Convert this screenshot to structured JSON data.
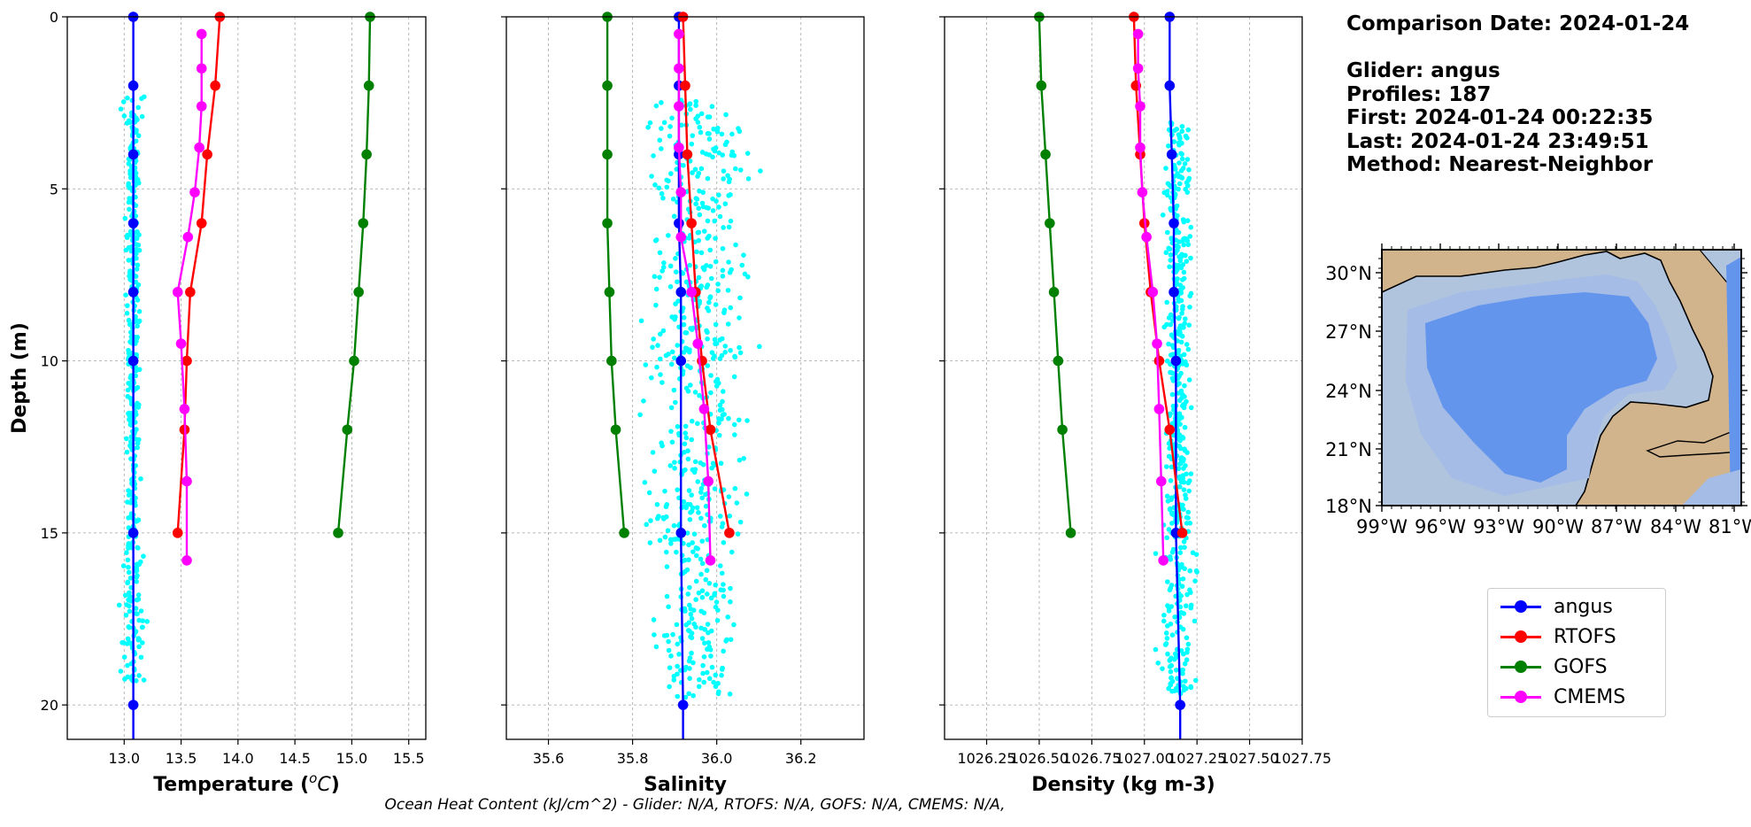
{
  "info": {
    "comparison_date": "Comparison Date: 2024-01-24",
    "glider": "Glider: angus",
    "profiles": "Profiles: 187",
    "first": "First: 2024-01-24 00:22:35",
    "last": "Last: 2024-01-24 23:49:51",
    "method": "Method: Nearest-Neighbor"
  },
  "footer": "Ocean Heat Content (kJ/cm^2) - Glider: N/A,  RTOFS: N/A,  GOFS: N/A,  CMEMS: N/A,",
  "colors": {
    "angus": "#0000ff",
    "RTOFS": "#ff0000",
    "GOFS": "#008000",
    "CMEMS": "#ff00ff",
    "scatter": "#00ffff",
    "land": "#d2b48c",
    "ocean_shelf": "#b0c4de",
    "ocean_mid": "#a4bce6",
    "ocean_deep": "#6495ed"
  },
  "legend": [
    {
      "name": "angus",
      "color": "#0000ff"
    },
    {
      "name": "RTOFS",
      "color": "#ff0000"
    },
    {
      "name": "GOFS",
      "color": "#008000"
    },
    {
      "name": "CMEMS",
      "color": "#ff00ff"
    }
  ],
  "map": {
    "lat_labels": [
      "30°N",
      "27°N",
      "24°N",
      "21°N",
      "18°N"
    ],
    "lon_labels": [
      "99°W",
      "96°W",
      "93°W",
      "90°W",
      "87°W",
      "84°W",
      "81°W"
    ]
  },
  "chart_data": [
    {
      "type": "line",
      "xlabel": "Temperature (°C)",
      "ylabel": "Depth (m)",
      "xlim": [
        12.5,
        15.65
      ],
      "ylim": [
        21,
        0
      ],
      "xticks": [
        13.0,
        13.5,
        14.0,
        14.5,
        15.0,
        15.5
      ],
      "xtick_labels": [
        "13.0",
        "13.5",
        "14.0",
        "14.5",
        "15.0",
        "15.5"
      ],
      "yticks": [
        0,
        5,
        10,
        15,
        20
      ],
      "grid": true,
      "scatter": {
        "x_center": 13.08,
        "x_spread": 0.06,
        "x_spread_wide": 0.12,
        "depth_min": 2.3,
        "depth_max": 19.3,
        "count": 420
      },
      "series": [
        {
          "name": "angus",
          "depth": [
            0,
            2,
            4,
            6,
            8,
            10,
            15,
            20
          ],
          "values": [
            13.08,
            13.08,
            13.08,
            13.08,
            13.08,
            13.08,
            13.08,
            13.08
          ],
          "extend_to": 21
        },
        {
          "name": "RTOFS",
          "depth": [
            0,
            2,
            4,
            6,
            8,
            10,
            12,
            15
          ],
          "values": [
            13.84,
            13.8,
            13.73,
            13.68,
            13.58,
            13.55,
            13.53,
            13.47
          ]
        },
        {
          "name": "GOFS",
          "depth": [
            0,
            2,
            4,
            6,
            8,
            10,
            12,
            15
          ],
          "values": [
            15.16,
            15.15,
            15.13,
            15.1,
            15.06,
            15.02,
            14.96,
            14.88
          ]
        },
        {
          "name": "CMEMS",
          "depth": [
            0.5,
            1.5,
            2.6,
            3.8,
            5.1,
            6.4,
            8,
            9.5,
            11.4,
            13.5,
            15.8
          ],
          "values": [
            13.68,
            13.68,
            13.68,
            13.66,
            13.62,
            13.56,
            13.47,
            13.5,
            13.53,
            13.55,
            13.55
          ]
        }
      ]
    },
    {
      "type": "line",
      "xlabel": "Salinity",
      "xlim": [
        35.5,
        36.35
      ],
      "ylim": [
        21,
        0
      ],
      "xticks": [
        35.6,
        35.8,
        36.0,
        36.2
      ],
      "xtick_labels": [
        "35.6",
        "35.8",
        "36.0",
        "36.2"
      ],
      "yticks": [
        0,
        5,
        10,
        15,
        20
      ],
      "grid": true,
      "scatter": {
        "x_center": 35.95,
        "x_spread": 0.13,
        "x_spread_wide": 0.1,
        "depth_min": 2.4,
        "depth_max": 19.8,
        "count": 620
      },
      "series": [
        {
          "name": "angus",
          "depth": [
            0,
            2,
            4,
            6,
            8,
            10,
            15,
            20
          ],
          "values": [
            35.91,
            35.91,
            35.91,
            35.91,
            35.915,
            35.915,
            35.915,
            35.92
          ],
          "extend_to": 21
        },
        {
          "name": "RTOFS",
          "depth": [
            0,
            2,
            4,
            6,
            8,
            10,
            12,
            15
          ],
          "values": [
            35.92,
            35.925,
            35.93,
            35.94,
            35.95,
            35.965,
            35.985,
            36.03
          ]
        },
        {
          "name": "GOFS",
          "depth": [
            0,
            2,
            4,
            6,
            8,
            10,
            12,
            15
          ],
          "values": [
            35.74,
            35.74,
            35.74,
            35.74,
            35.745,
            35.75,
            35.76,
            35.78
          ]
        },
        {
          "name": "CMEMS",
          "depth": [
            0.5,
            1.5,
            2.6,
            3.8,
            5.1,
            6.4,
            8,
            9.5,
            11.4,
            13.5,
            15.8
          ],
          "values": [
            35.91,
            35.91,
            35.91,
            35.91,
            35.915,
            35.915,
            35.94,
            35.955,
            35.97,
            35.98,
            35.985
          ]
        }
      ]
    },
    {
      "type": "line",
      "xlabel": "Density (kg m-3)",
      "xlim": [
        1026.05,
        1027.75
      ],
      "ylim": [
        21,
        0
      ],
      "xticks": [
        1026.25,
        1026.5,
        1026.75,
        1027.0,
        1027.25,
        1027.5,
        1027.75
      ],
      "xtick_labels": [
        "1026.25",
        "1026.50",
        "1026.75",
        "1027.00",
        "1027.25",
        "1027.50",
        "1027.75"
      ],
      "yticks": [
        0,
        5,
        10,
        15,
        20
      ],
      "grid": true,
      "scatter": {
        "x_center": 1027.16,
        "x_spread": 0.06,
        "x_spread_wide": 0.1,
        "depth_min": 3,
        "depth_max": 19.7,
        "count": 500
      },
      "series": [
        {
          "name": "angus",
          "depth": [
            0,
            2,
            4,
            6,
            8,
            10,
            15,
            20
          ],
          "values": [
            1027.12,
            1027.12,
            1027.13,
            1027.14,
            1027.14,
            1027.15,
            1027.15,
            1027.17
          ],
          "extend_to": 21
        },
        {
          "name": "RTOFS",
          "depth": [
            0,
            2,
            4,
            6,
            8,
            10,
            12,
            15
          ],
          "values": [
            1026.95,
            1026.96,
            1026.98,
            1027.0,
            1027.03,
            1027.07,
            1027.12,
            1027.18
          ]
        },
        {
          "name": "GOFS",
          "depth": [
            0,
            2,
            4,
            6,
            8,
            10,
            12,
            15
          ],
          "values": [
            1026.5,
            1026.51,
            1026.53,
            1026.55,
            1026.57,
            1026.59,
            1026.61,
            1026.65
          ]
        },
        {
          "name": "CMEMS",
          "depth": [
            0.5,
            1.5,
            2.6,
            3.8,
            5.1,
            6.4,
            8,
            9.5,
            11.4,
            13.5,
            15.8
          ],
          "values": [
            1026.97,
            1026.97,
            1026.98,
            1026.98,
            1026.99,
            1027.01,
            1027.04,
            1027.06,
            1027.07,
            1027.08,
            1027.09
          ]
        }
      ]
    }
  ]
}
